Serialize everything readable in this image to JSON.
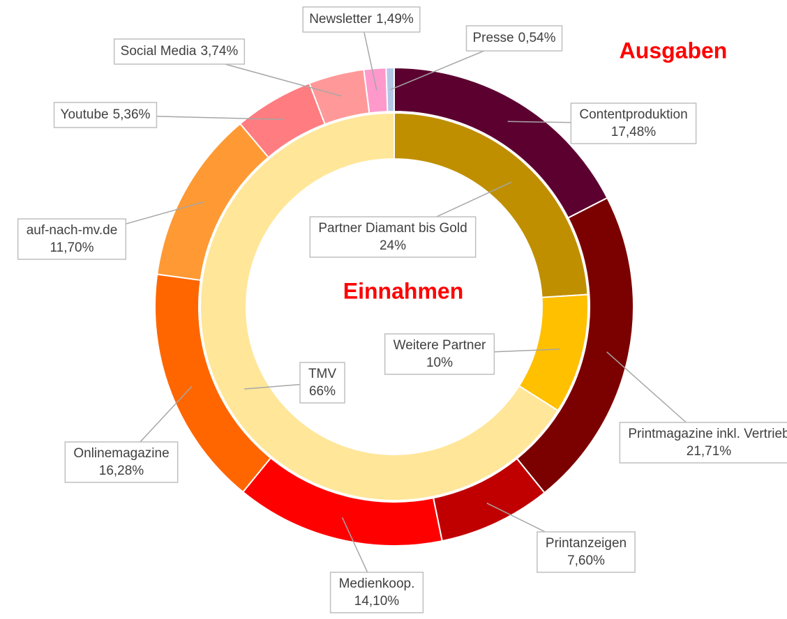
{
  "chart_data": [
    {
      "type": "donut",
      "title": "Ausgaben",
      "categories": [
        "Contentproduktion",
        "Printmagazine inkl. Vertrieb",
        "Printanzeigen",
        "Medienkoop.",
        "Onlinemagazine",
        "auf-nach-mv.de",
        "Youtube",
        "Social Media",
        "Newsletter",
        "Presse"
      ],
      "values": [
        17.48,
        21.71,
        7.6,
        14.1,
        16.28,
        11.7,
        5.36,
        3.74,
        1.49,
        0.54
      ],
      "value_labels": [
        "17,48%",
        "21,71%",
        "7,60%",
        "14,10%",
        "16,28%",
        "11,70%",
        "5,36%",
        "3,74%",
        "1,49%",
        "0,54%"
      ],
      "colors": [
        "#5c0030",
        "#7b0000",
        "#c00000",
        "#ff0000",
        "#ff6600",
        "#ff9933",
        "#ff7c80",
        "#ff9999",
        "#ff99cc",
        "#b4c7e7"
      ]
    },
    {
      "type": "donut",
      "title": "Einnahmen",
      "categories": [
        "Partner Diamant bis Gold",
        "Weitere Partner",
        "TMV"
      ],
      "values": [
        24,
        10,
        66
      ],
      "value_labels": [
        "24%",
        "10%",
        "66%"
      ],
      "colors": [
        "#bf8f00",
        "#ffc000",
        "#ffe699"
      ]
    }
  ]
}
